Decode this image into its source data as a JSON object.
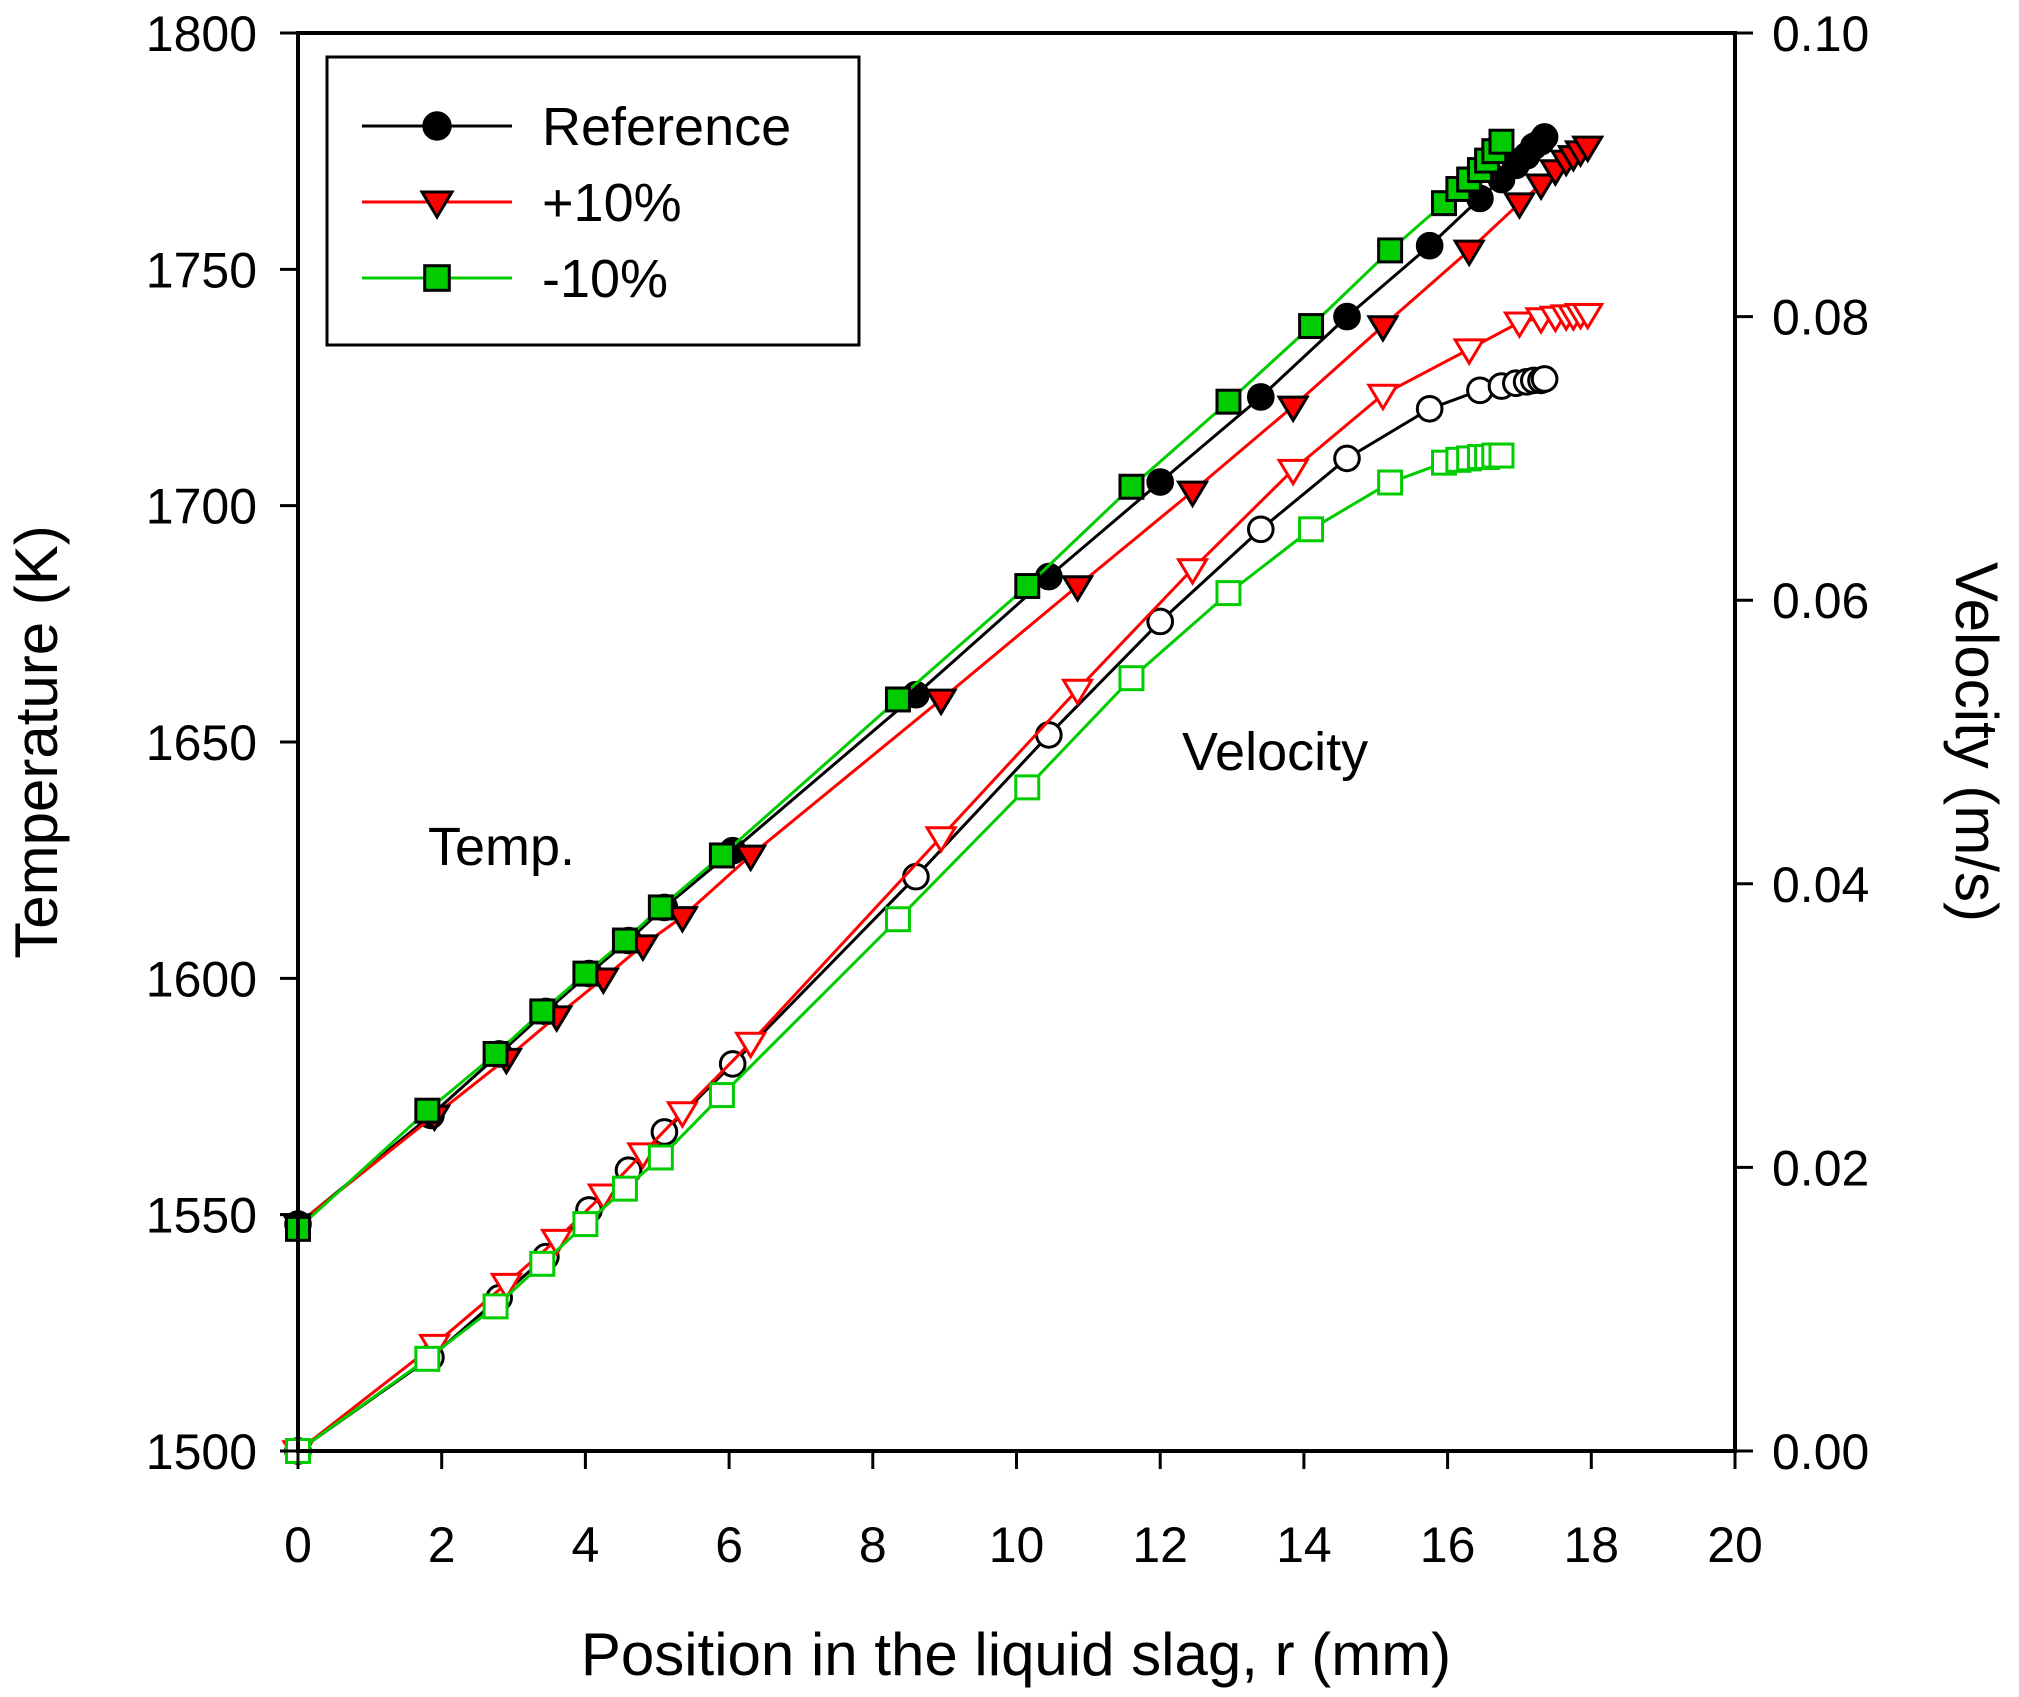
{
  "chart_data": {
    "type": "line",
    "title": "",
    "xlabel": "Position in the liquid slag, r (mm)",
    "ylabel": "Temperature (K)",
    "y2label": "Velocity (m/s)",
    "xlim": [
      0,
      20
    ],
    "ylim": [
      1500,
      1800
    ],
    "y2lim": [
      0.0,
      0.1
    ],
    "xticks": [
      "0",
      "2",
      "4",
      "6",
      "8",
      "10",
      "12",
      "14",
      "16",
      "18",
      "20"
    ],
    "yticks": [
      "1500",
      "1550",
      "1600",
      "1650",
      "1700",
      "1750",
      "1800"
    ],
    "y2ticks": [
      "0.00",
      "0.02",
      "0.04",
      "0.06",
      "0.08",
      "0.10"
    ],
    "grid": false,
    "legend_position": "top-left",
    "annotations": {
      "temp": "Temp.",
      "velocity": "Velocity"
    },
    "series": [
      {
        "name": "Reference",
        "quantity": "temperature",
        "axis": "left",
        "color": "#000000",
        "marker": "circle",
        "filled": true,
        "in_legend": true,
        "x": [
          0,
          1.85,
          2.8,
          3.45,
          4.05,
          4.6,
          5.1,
          6.05,
          8.6,
          10.45,
          12.0,
          13.4,
          14.6,
          15.75,
          16.45,
          16.75,
          16.95,
          17.1,
          17.2,
          17.3,
          17.35
        ],
        "y": [
          1548,
          1571,
          1584,
          1593,
          1601,
          1608,
          1615,
          1627,
          1660,
          1685,
          1705,
          1723,
          1740,
          1755,
          1765,
          1769,
          1772,
          1774,
          1776,
          1777,
          1778
        ]
      },
      {
        "name": "+10%",
        "quantity": "temperature",
        "axis": "left",
        "color": "#ff0000",
        "marker": "triangle-down",
        "filled": true,
        "in_legend": true,
        "x": [
          0,
          1.9,
          2.9,
          3.6,
          4.25,
          4.8,
          5.35,
          6.3,
          8.95,
          10.85,
          12.45,
          13.85,
          15.1,
          16.3,
          17.0,
          17.3,
          17.5,
          17.65,
          17.75,
          17.85,
          17.95
        ],
        "y": [
          1548,
          1571,
          1583,
          1592,
          1600,
          1607,
          1613,
          1626,
          1659,
          1683,
          1703,
          1721,
          1738,
          1754,
          1764,
          1768,
          1771,
          1773,
          1774,
          1775,
          1776
        ]
      },
      {
        "name": "-10%",
        "quantity": "temperature",
        "axis": "left",
        "color": "#00cc00",
        "marker": "square",
        "filled": true,
        "in_legend": true,
        "x": [
          0,
          1.8,
          2.75,
          3.4,
          4.0,
          4.55,
          5.05,
          5.9,
          8.35,
          10.15,
          11.6,
          12.95,
          14.1,
          15.2,
          15.95,
          16.15,
          16.3,
          16.45,
          16.55,
          16.65,
          16.75
        ],
        "y": [
          1547,
          1572,
          1584,
          1593,
          1601,
          1608,
          1615,
          1626,
          1659,
          1683,
          1704,
          1722,
          1738,
          1754,
          1764,
          1767,
          1769,
          1771,
          1773,
          1775,
          1777
        ]
      },
      {
        "name": "Reference",
        "quantity": "velocity",
        "axis": "right",
        "color": "#000000",
        "marker": "circle",
        "filled": false,
        "in_legend": false,
        "x": [
          0,
          1.85,
          2.8,
          3.45,
          4.05,
          4.6,
          5.1,
          6.05,
          8.6,
          10.45,
          12.0,
          13.4,
          14.6,
          15.75,
          16.45,
          16.75,
          16.95,
          17.1,
          17.2,
          17.3,
          17.35
        ],
        "y": [
          0.0,
          0.0066,
          0.0108,
          0.0137,
          0.017,
          0.0198,
          0.0225,
          0.0273,
          0.0405,
          0.0505,
          0.0585,
          0.065,
          0.07,
          0.0735,
          0.0748,
          0.0751,
          0.0753,
          0.0754,
          0.0755,
          0.0755,
          0.0756
        ]
      },
      {
        "name": "+10%",
        "quantity": "velocity",
        "axis": "right",
        "color": "#ff0000",
        "marker": "triangle-down",
        "filled": false,
        "in_legend": false,
        "x": [
          0,
          1.9,
          2.9,
          3.6,
          4.25,
          4.8,
          5.35,
          6.3,
          8.95,
          10.85,
          12.45,
          13.85,
          15.1,
          16.3,
          17.0,
          17.3,
          17.5,
          17.65,
          17.75,
          17.85,
          17.95
        ],
        "y": [
          0.0,
          0.0075,
          0.0118,
          0.0149,
          0.0181,
          0.021,
          0.0239,
          0.0288,
          0.0433,
          0.0537,
          0.0622,
          0.0692,
          0.0745,
          0.0777,
          0.0796,
          0.0799,
          0.08,
          0.0801,
          0.0801,
          0.0802,
          0.0802
        ]
      },
      {
        "name": "-10%",
        "quantity": "velocity",
        "axis": "right",
        "color": "#00cc00",
        "marker": "square",
        "filled": false,
        "in_legend": false,
        "x": [
          0,
          1.8,
          2.75,
          3.4,
          4.0,
          4.55,
          5.05,
          5.9,
          8.35,
          10.15,
          11.6,
          12.95,
          14.1,
          15.2,
          15.95,
          16.15,
          16.3,
          16.45,
          16.55,
          16.65,
          16.75
        ],
        "y": [
          0.0,
          0.0065,
          0.0102,
          0.0132,
          0.016,
          0.0185,
          0.0207,
          0.0251,
          0.0375,
          0.0468,
          0.0545,
          0.0605,
          0.065,
          0.0683,
          0.0697,
          0.0699,
          0.07,
          0.0701,
          0.0701,
          0.0702,
          0.0702
        ]
      }
    ]
  }
}
